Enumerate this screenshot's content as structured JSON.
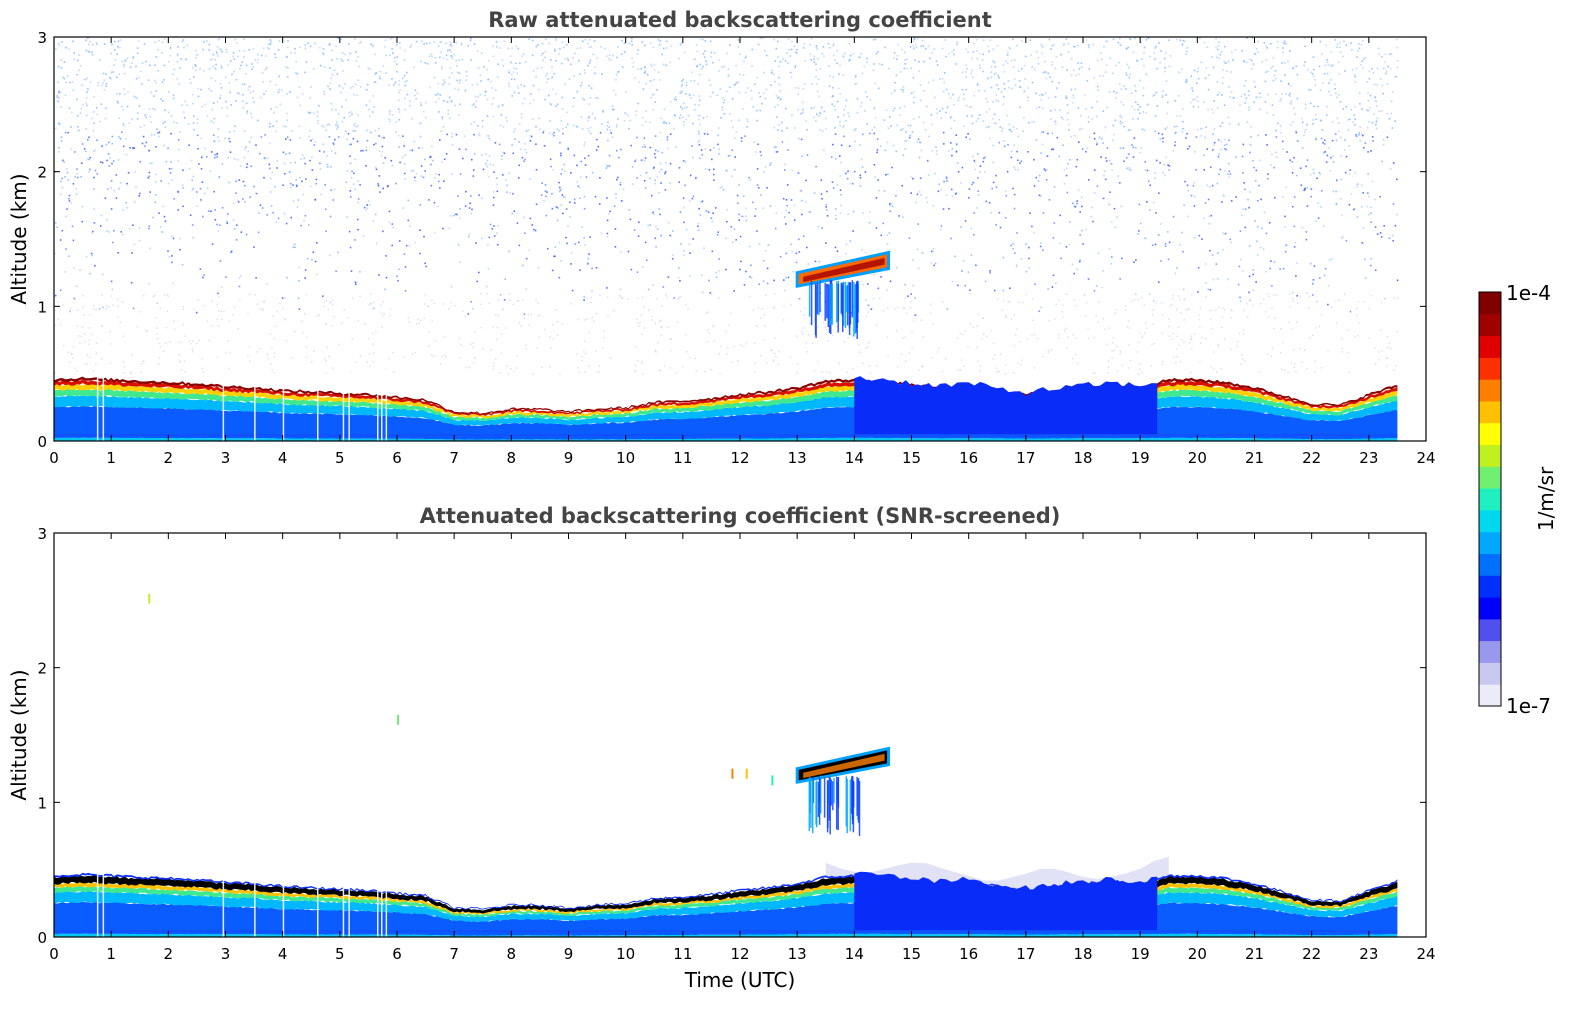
{
  "chart_data": [
    {
      "type": "heatmap",
      "title": "Raw attenuated backscattering coefficient",
      "xlabel": "",
      "ylabel": "Altitude (km)",
      "xlim": [
        0,
        24
      ],
      "ylim": [
        0,
        3
      ],
      "x_ticks": [
        "0",
        "1",
        "2",
        "3",
        "4",
        "5",
        "6",
        "7",
        "8",
        "9",
        "10",
        "11",
        "12",
        "13",
        "14",
        "15",
        "16",
        "17",
        "18",
        "19",
        "20",
        "21",
        "22",
        "23",
        "24"
      ],
      "y_ticks": [
        "0",
        "1",
        "2",
        "3"
      ],
      "data_end_hour": 23.5,
      "layer_top_km": [
        [
          0,
          0.46
        ],
        [
          0.5,
          0.47
        ],
        [
          1,
          0.46
        ],
        [
          1.5,
          0.45
        ],
        [
          2,
          0.44
        ],
        [
          2.5,
          0.43
        ],
        [
          3,
          0.41
        ],
        [
          3.5,
          0.4
        ],
        [
          4,
          0.38
        ],
        [
          4.5,
          0.37
        ],
        [
          5,
          0.36
        ],
        [
          5.5,
          0.35
        ],
        [
          6,
          0.33
        ],
        [
          6.5,
          0.31
        ],
        [
          7,
          0.22
        ],
        [
          7.5,
          0.21
        ],
        [
          8,
          0.24
        ],
        [
          8.5,
          0.24
        ],
        [
          9,
          0.22
        ],
        [
          9.5,
          0.24
        ],
        [
          10,
          0.25
        ],
        [
          10.5,
          0.29
        ],
        [
          11,
          0.3
        ],
        [
          11.5,
          0.32
        ],
        [
          12,
          0.35
        ],
        [
          12.5,
          0.37
        ],
        [
          13,
          0.4
        ],
        [
          13.5,
          0.45
        ],
        [
          14,
          0.46
        ],
        [
          14.5,
          0.45
        ],
        [
          15,
          0.42
        ],
        [
          15.5,
          0.4
        ],
        [
          16,
          0.42
        ],
        [
          16.5,
          0.38
        ],
        [
          17,
          0.35
        ],
        [
          17.5,
          0.38
        ],
        [
          18,
          0.4
        ],
        [
          18.5,
          0.42
        ],
        [
          19,
          0.4
        ],
        [
          19.5,
          0.46
        ],
        [
          20,
          0.46
        ],
        [
          20.5,
          0.44
        ],
        [
          21,
          0.4
        ],
        [
          21.5,
          0.34
        ],
        [
          22,
          0.28
        ],
        [
          22.5,
          0.27
        ],
        [
          23,
          0.35
        ],
        [
          23.5,
          0.42
        ]
      ],
      "cloud": {
        "start_hour": 13.0,
        "end_hour": 14.6,
        "base_km_start": 1.15,
        "base_km_end": 1.28,
        "top_km_start": 1.25,
        "top_km_end": 1.4
      }
    },
    {
      "type": "heatmap",
      "title": "Attenuated backscattering coefficient (SNR-screened)",
      "xlabel": "Time (UTC)",
      "ylabel": "Altitude (km)",
      "xlim": [
        0,
        24
      ],
      "ylim": [
        0,
        3
      ],
      "x_ticks": [
        "0",
        "1",
        "2",
        "3",
        "4",
        "5",
        "6",
        "7",
        "8",
        "9",
        "10",
        "11",
        "12",
        "13",
        "14",
        "15",
        "16",
        "17",
        "18",
        "19",
        "20",
        "21",
        "22",
        "23",
        "24"
      ],
      "y_ticks": [
        "0",
        "1",
        "2",
        "3"
      ],
      "data_end_hour": 23.5,
      "layer_top_km": [
        [
          0,
          0.46
        ],
        [
          0.5,
          0.47
        ],
        [
          1,
          0.46
        ],
        [
          1.5,
          0.45
        ],
        [
          2,
          0.44
        ],
        [
          2.5,
          0.43
        ],
        [
          3,
          0.41
        ],
        [
          3.5,
          0.4
        ],
        [
          4,
          0.38
        ],
        [
          4.5,
          0.37
        ],
        [
          5,
          0.36
        ],
        [
          5.5,
          0.35
        ],
        [
          6,
          0.33
        ],
        [
          6.5,
          0.31
        ],
        [
          7,
          0.22
        ],
        [
          7.5,
          0.21
        ],
        [
          8,
          0.24
        ],
        [
          8.5,
          0.24
        ],
        [
          9,
          0.22
        ],
        [
          9.5,
          0.24
        ],
        [
          10,
          0.25
        ],
        [
          10.5,
          0.29
        ],
        [
          11,
          0.3
        ],
        [
          11.5,
          0.32
        ],
        [
          12,
          0.35
        ],
        [
          12.5,
          0.37
        ],
        [
          13,
          0.4
        ],
        [
          13.5,
          0.45
        ],
        [
          14,
          0.46
        ],
        [
          14.5,
          0.45
        ],
        [
          15,
          0.42
        ],
        [
          15.5,
          0.4
        ],
        [
          16,
          0.42
        ],
        [
          16.5,
          0.38
        ],
        [
          17,
          0.35
        ],
        [
          17.5,
          0.38
        ],
        [
          18,
          0.4
        ],
        [
          18.5,
          0.42
        ],
        [
          19,
          0.4
        ],
        [
          19.5,
          0.46
        ],
        [
          20,
          0.46
        ],
        [
          20.5,
          0.44
        ],
        [
          21,
          0.4
        ],
        [
          21.5,
          0.34
        ],
        [
          22,
          0.28
        ],
        [
          22.5,
          0.27
        ],
        [
          23,
          0.35
        ],
        [
          23.5,
          0.42
        ]
      ],
      "cloud": {
        "start_hour": 13.0,
        "end_hour": 14.6,
        "base_km_start": 1.15,
        "base_km_end": 1.28,
        "top_km_start": 1.25,
        "top_km_end": 1.4
      }
    }
  ],
  "colorbar": {
    "max_label": "1e-4",
    "min_label": "1e-7",
    "units_label": "1/m/sr",
    "colors": [
      "#ececf8",
      "#c8c8f0",
      "#9898ec",
      "#5050f0",
      "#0000ff",
      "#0030ff",
      "#0070ff",
      "#00a8ff",
      "#00d8f0",
      "#20f0c0",
      "#70f070",
      "#c0f020",
      "#ffff00",
      "#ffc000",
      "#ff8000",
      "#ff3000",
      "#e00000",
      "#a00000",
      "#800000"
    ]
  }
}
